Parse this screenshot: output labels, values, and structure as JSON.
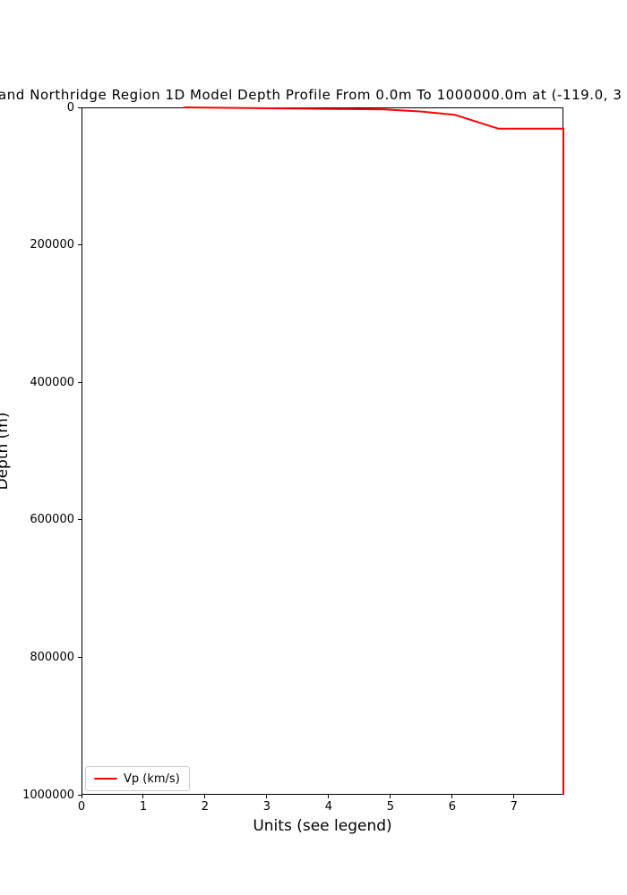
{
  "page": {
    "background": "#ffffff",
    "text_color": "#000000"
  },
  "chart_data": {
    "type": "line",
    "title_visible": "and Northridge Region 1D Model Depth Profile From 0.0m To 1000000.0m at (-119.0, 3",
    "xlabel": "Units (see legend)",
    "ylabel": "Depth (m)",
    "xlim": [
      0,
      7.8
    ],
    "ylim": [
      0,
      1000000
    ],
    "y_inverted": true,
    "y_axis_note": "depth increases downward; 0 at top spine",
    "xticks": [
      0,
      1,
      2,
      3,
      4,
      5,
      6,
      7
    ],
    "yticks": [
      0,
      200000,
      400000,
      600000,
      800000,
      1000000
    ],
    "grid": false,
    "legend": {
      "position": "lower left",
      "entries": [
        {
          "label": "Vp (km/s)",
          "color": "#ff0000"
        }
      ]
    },
    "series": [
      {
        "name": "Vp (km/s)",
        "color": "#ff0000",
        "line_width": 2,
        "points": [
          {
            "depth_m": 0,
            "vp": 1.65
          },
          {
            "depth_m": 3000,
            "vp": 4.9
          },
          {
            "depth_m": 6000,
            "vp": 5.5
          },
          {
            "depth_m": 11000,
            "vp": 6.05
          },
          {
            "depth_m": 31000,
            "vp": 6.75
          },
          {
            "depth_m": 31000,
            "vp": 7.8
          },
          {
            "depth_m": 1000000,
            "vp": 7.8
          }
        ]
      }
    ]
  }
}
